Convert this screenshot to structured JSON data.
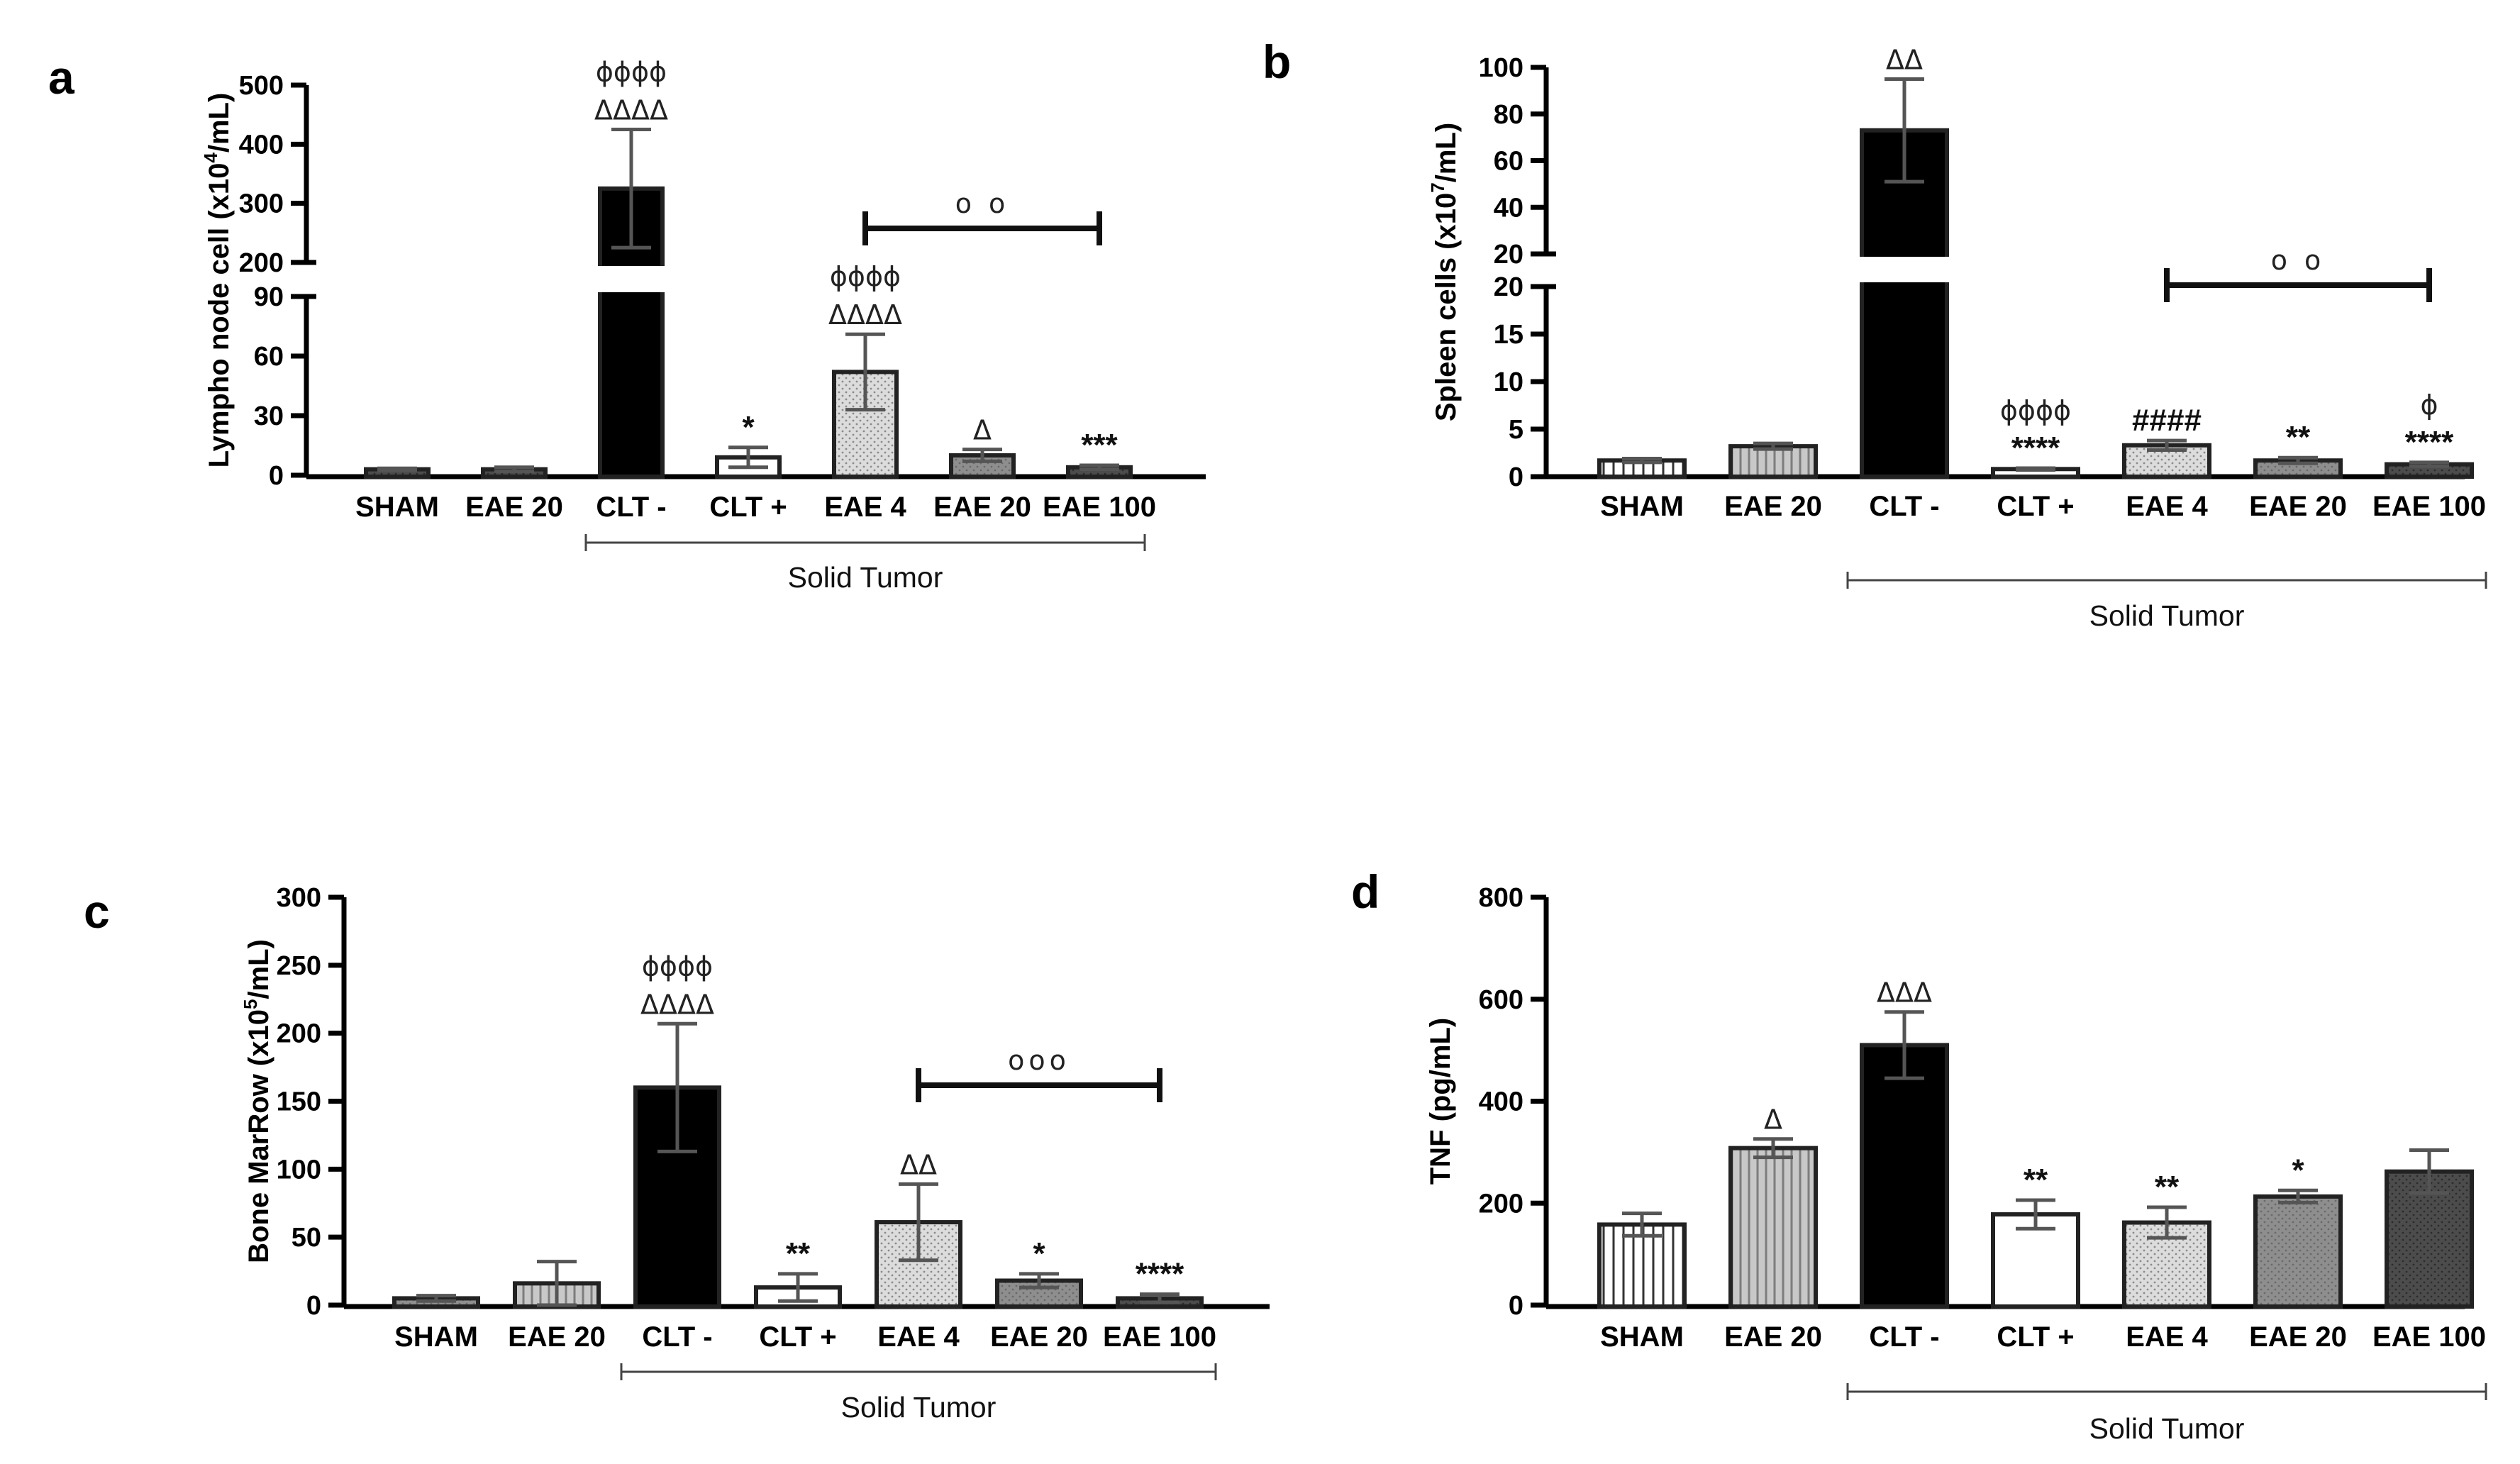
{
  "styles": {
    "vlines": {
      "fill": "#ffffff",
      "pattern": "vlines",
      "color": "#333333"
    },
    "hatch": {
      "fill": "#cfcfcf",
      "pattern": "vlines",
      "color": "#8a8a8a"
    },
    "black": {
      "fill": "#000000",
      "pattern": "none",
      "color": "#000000"
    },
    "white": {
      "fill": "#ffffff",
      "pattern": "none",
      "color": "#000000"
    },
    "dots": {
      "fill": "#d9d9d9",
      "pattern": "dots",
      "color": "#8f8f8f"
    },
    "gray": {
      "fill": "#8c8c8c",
      "pattern": "dots",
      "color": "#6e6e6e"
    },
    "dark": {
      "fill": "#4a4a4a",
      "pattern": "dots",
      "color": "#2f2f2f"
    }
  },
  "chart_data": [
    {
      "id": "a",
      "letter": "a",
      "type": "bar",
      "ylabel": {
        "pre": "Lympho node cell (x10",
        "sup": "4",
        "post": "/mL)"
      },
      "categories": [
        "SHAM",
        "EAE 20",
        "CLT -",
        "CLT +",
        "EAE 4",
        "EAE 20",
        "EAE 100"
      ],
      "group_label": "Solid Tumor",
      "group_range": [
        2,
        6
      ],
      "values": [
        3,
        3,
        325,
        9,
        52,
        10,
        4
      ],
      "errors": [
        0.5,
        1,
        100,
        5,
        19,
        3,
        1
      ],
      "bar_styles": [
        "dark",
        "dark",
        "black",
        "white",
        "dots",
        "gray",
        "dark"
      ],
      "broken_axis": {
        "low": {
          "range": [
            0,
            90
          ],
          "ticks": [
            0,
            30,
            60,
            90
          ]
        },
        "high": {
          "range": [
            200,
            500
          ],
          "ticks": [
            200,
            300,
            400,
            500
          ]
        }
      },
      "annotations": [
        {
          "bar": 2,
          "lines": [
            "ϕϕϕϕ",
            "ΔΔΔΔ"
          ]
        },
        {
          "bar": 3,
          "lines": [
            "*"
          ]
        },
        {
          "bar": 4,
          "lines": [
            "ϕϕϕϕ",
            "ΔΔΔΔ"
          ]
        },
        {
          "bar": 5,
          "lines": [
            "Δ"
          ]
        },
        {
          "bar": 6,
          "lines": [
            "***"
          ]
        }
      ],
      "bracket": {
        "from": 4,
        "to": 6,
        "label": "o o"
      }
    },
    {
      "id": "b",
      "letter": "b",
      "type": "bar",
      "ylabel": {
        "pre": "Spleen cells (x10",
        "sup": "7",
        "post": "/mL)"
      },
      "categories": [
        "SHAM",
        "EAE 20",
        "CLT -",
        "CLT +",
        "EAE 4",
        "EAE 20",
        "EAE 100"
      ],
      "group_label": "Solid Tumor",
      "group_range": [
        2,
        6
      ],
      "values": [
        1.7,
        3.2,
        73,
        0.8,
        3.3,
        1.7,
        1.3
      ],
      "errors": [
        0.2,
        0.3,
        22,
        0.1,
        0.5,
        0.3,
        0.2
      ],
      "bar_styles": [
        "vlines",
        "hatch",
        "black",
        "white",
        "dots",
        "gray",
        "dark"
      ],
      "broken_axis": {
        "low": {
          "range": [
            0,
            20
          ],
          "ticks": [
            0,
            5,
            10,
            15,
            20
          ]
        },
        "high": {
          "range": [
            20,
            100
          ],
          "ticks": [
            20,
            40,
            60,
            80,
            100
          ]
        }
      },
      "annotations": [
        {
          "bar": 2,
          "lines": [
            "ΔΔ"
          ]
        },
        {
          "bar": 3,
          "lines": [
            "ϕϕϕϕ",
            "****"
          ]
        },
        {
          "bar": 4,
          "lines": [
            "####"
          ]
        },
        {
          "bar": 5,
          "lines": [
            "**"
          ]
        },
        {
          "bar": 6,
          "lines": [
            "ϕ",
            "****"
          ]
        }
      ],
      "bracket": {
        "from": 4,
        "to": 6,
        "label": "o o"
      }
    },
    {
      "id": "c",
      "letter": "c",
      "type": "bar",
      "ylabel": {
        "pre": "Bone MarRow (x10",
        "sup": "5",
        "post": "/mL)"
      },
      "categories": [
        "SHAM",
        "EAE 20",
        "CLT -",
        "CLT +",
        "EAE 4",
        "EAE 20",
        "EAE 100"
      ],
      "group_label": "Solid Tumor",
      "group_range": [
        2,
        6
      ],
      "values": [
        5,
        16,
        160,
        13,
        61,
        18,
        5
      ],
      "errors": [
        2,
        16,
        47,
        10,
        28,
        5,
        3
      ],
      "bar_styles": [
        "gray",
        "hatch",
        "black",
        "white",
        "dots",
        "gray",
        "dark"
      ],
      "ylim": [
        0,
        300
      ],
      "yticks": [
        0,
        50,
        100,
        150,
        200,
        250,
        300
      ],
      "annotations": [
        {
          "bar": 2,
          "lines": [
            "ϕϕϕϕ",
            "ΔΔΔΔ"
          ]
        },
        {
          "bar": 3,
          "lines": [
            "**"
          ]
        },
        {
          "bar": 4,
          "lines": [
            "ΔΔ"
          ]
        },
        {
          "bar": 5,
          "lines": [
            "*"
          ]
        },
        {
          "bar": 6,
          "lines": [
            "****"
          ]
        }
      ],
      "bracket": {
        "from": 4,
        "to": 6,
        "label": "ooo"
      }
    },
    {
      "id": "d",
      "letter": "d",
      "type": "bar",
      "ylabel": {
        "pre": "TNF (pg/mL)",
        "sup": "",
        "post": ""
      },
      "categories": [
        "SHAM",
        "EAE 20",
        "CLT -",
        "CLT +",
        "EAE 4",
        "EAE 20",
        "EAE 100"
      ],
      "group_label": "Solid Tumor",
      "group_range": [
        2,
        6
      ],
      "values": [
        158,
        308,
        510,
        178,
        162,
        213,
        262
      ],
      "errors": [
        22,
        18,
        65,
        28,
        30,
        12,
        42
      ],
      "bar_styles": [
        "vlines",
        "hatch",
        "black",
        "white",
        "dots",
        "gray",
        "dark"
      ],
      "ylim": [
        0,
        800
      ],
      "yticks": [
        0,
        200,
        400,
        600,
        800
      ],
      "annotations": [
        {
          "bar": 1,
          "lines": [
            "Δ"
          ]
        },
        {
          "bar": 2,
          "lines": [
            "ΔΔΔ"
          ]
        },
        {
          "bar": 3,
          "lines": [
            "**"
          ]
        },
        {
          "bar": 4,
          "lines": [
            "**"
          ]
        },
        {
          "bar": 5,
          "lines": [
            "*"
          ]
        }
      ],
      "bracket": null
    }
  ]
}
